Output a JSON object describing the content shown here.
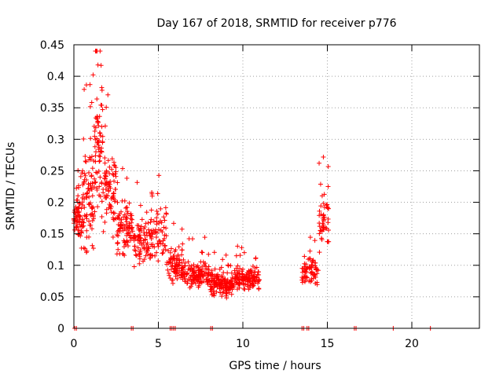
{
  "chart_data": {
    "type": "scatter",
    "title": "Day 167 of 2018, SRMTID for receiver p776",
    "xlabel": "GPS time / hours",
    "ylabel": "SRMTID / TECUs",
    "xlim": [
      0,
      24
    ],
    "ylim": [
      0,
      0.45
    ],
    "xticks": [
      0,
      5,
      10,
      15,
      20
    ],
    "yticks": [
      0,
      0.05,
      0.1,
      0.15,
      0.2,
      0.25,
      0.3,
      0.35,
      0.4,
      0.45
    ],
    "xtick_labels": [
      "0",
      "5",
      "10",
      "15",
      "20"
    ],
    "ytick_labels": [
      "0",
      "0.05",
      "0.1",
      "0.15",
      "0.2",
      "0.25",
      "0.3",
      "0.35",
      "0.4",
      "0.45"
    ],
    "grid": true,
    "marker": "+",
    "color": "#ff0000",
    "segments": [
      {
        "x0": 0.0,
        "x1": 0.5,
        "mean": 0.17,
        "spread": 0.05,
        "density": 60
      },
      {
        "x0": 0.5,
        "x1": 1.2,
        "mean": 0.2,
        "spread": 0.12,
        "density": 90
      },
      {
        "x0": 1.2,
        "x1": 1.7,
        "mean": 0.28,
        "spread": 0.15,
        "density": 70
      },
      {
        "x0": 1.7,
        "x1": 2.5,
        "mean": 0.22,
        "spread": 0.1,
        "density": 80
      },
      {
        "x0": 2.5,
        "x1": 3.5,
        "mean": 0.16,
        "spread": 0.06,
        "density": 90
      },
      {
        "x0": 3.5,
        "x1": 4.5,
        "mean": 0.14,
        "spread": 0.06,
        "density": 80
      },
      {
        "x0": 4.5,
        "x1": 5.5,
        "mean": 0.15,
        "spread": 0.07,
        "density": 70
      },
      {
        "x0": 5.5,
        "x1": 6.5,
        "mean": 0.1,
        "spread": 0.04,
        "density": 90
      },
      {
        "x0": 6.5,
        "x1": 8.0,
        "mean": 0.085,
        "spread": 0.035,
        "density": 130
      },
      {
        "x0": 8.0,
        "x1": 9.5,
        "mean": 0.07,
        "spread": 0.03,
        "density": 150
      },
      {
        "x0": 9.5,
        "x1": 11.0,
        "mean": 0.08,
        "spread": 0.03,
        "density": 140
      },
      {
        "x0": 13.5,
        "x1": 14.5,
        "mean": 0.09,
        "spread": 0.035,
        "density": 70
      },
      {
        "x0": 14.5,
        "x1": 15.1,
        "mean": 0.17,
        "spread": 0.06,
        "density": 50
      }
    ],
    "zero_points": [
      0.05,
      0.15,
      3.4,
      3.5,
      5.7,
      5.8,
      5.9,
      6.0,
      8.1,
      8.2,
      13.5,
      13.6,
      13.8,
      13.9,
      16.6,
      16.7,
      18.9,
      21.1
    ]
  }
}
